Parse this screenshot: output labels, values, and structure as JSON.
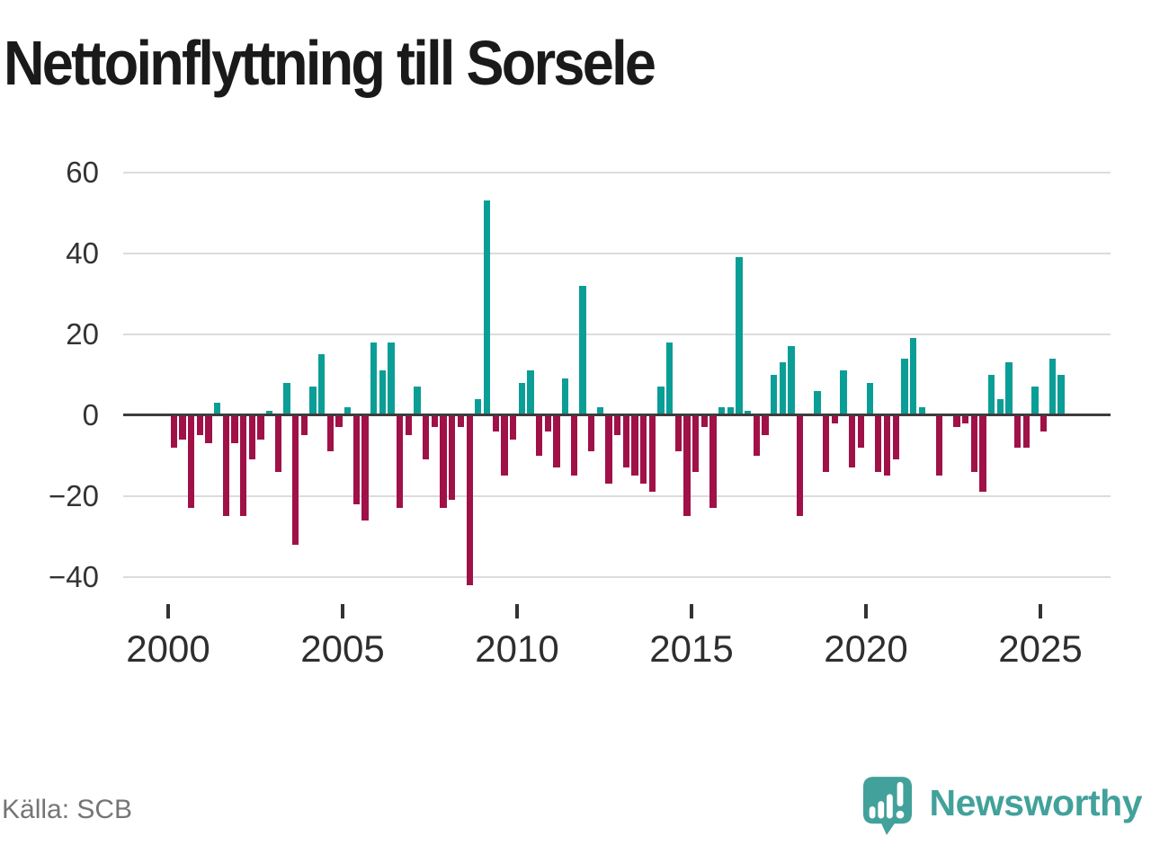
{
  "title": "Nettoinflyttning till Sorsele",
  "source": "Källa: SCB",
  "logo": {
    "wordmark": "Newsworthy"
  },
  "colors": {
    "positive": "#0b9e96",
    "negative": "#a01148",
    "grid": "#dcdcdc",
    "zero_line": "#3d3d3d",
    "axis_text": "#333333",
    "title_text": "#1a1a1a",
    "source_text": "#757575",
    "logo": "#42a19b",
    "background": "#ffffff"
  },
  "chart_data": {
    "type": "bar",
    "title": "Nettoinflyttning till Sorsele",
    "frequency": "quarterly",
    "x_start": "2000Q1",
    "x_end": "2025Q3",
    "values": [
      -8,
      -6,
      -23,
      -5,
      -7,
      3,
      -25,
      -7,
      -25,
      -11,
      -6,
      1,
      -14,
      8,
      -32,
      -5,
      7,
      15,
      -9,
      -3,
      2,
      -22,
      -26,
      18,
      11,
      18,
      -23,
      -5,
      7,
      -11,
      -3,
      -23,
      -21,
      -3,
      -42,
      4,
      53,
      -4,
      -15,
      -6,
      8,
      11,
      -10,
      -4,
      -13,
      9,
      -15,
      32,
      -9,
      2,
      -17,
      -5,
      -13,
      -15,
      -17,
      -19,
      7,
      18,
      -9,
      -25,
      -14,
      -3,
      -23,
      2,
      2,
      39,
      1,
      -10,
      -5,
      10,
      13,
      17,
      -25,
      0,
      6,
      -14,
      -2,
      11,
      -13,
      -8,
      8,
      -14,
      -15,
      -11,
      14,
      19,
      2,
      0,
      -15,
      0,
      -3,
      -2,
      -14,
      -19,
      10,
      4,
      13,
      -8,
      -8,
      7,
      -4,
      14,
      10
    ],
    "yticks": [
      60,
      40,
      20,
      0,
      -20,
      -40
    ],
    "xticks": [
      2000,
      2005,
      2010,
      2015,
      2020,
      2025
    ],
    "ylim": [
      -47,
      62
    ],
    "grid": "horizontal",
    "legend": "none",
    "positive_color": "#0b9e96",
    "negative_color": "#a01148"
  }
}
